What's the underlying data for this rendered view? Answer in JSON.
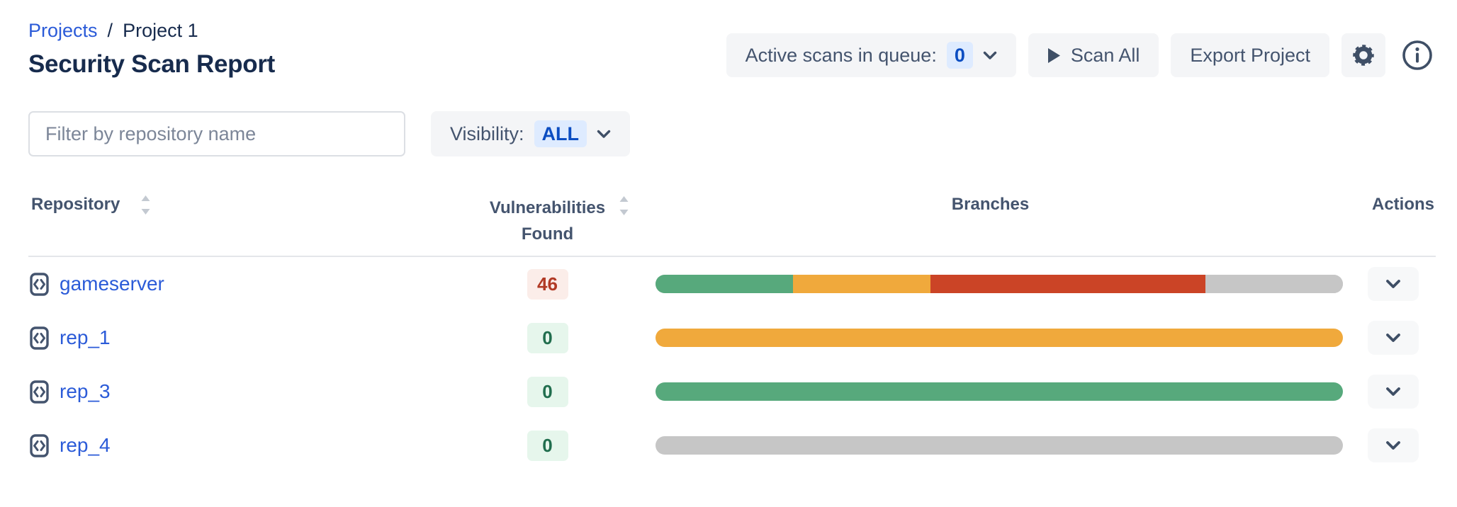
{
  "breadcrumb": {
    "projects_label": "Projects",
    "separator": "/",
    "current_label": "Project 1"
  },
  "page_title": "Security Scan Report",
  "toolbar": {
    "active_scans_label": "Active scans in queue:",
    "active_scans_count": "0",
    "scan_all_label": "Scan All",
    "export_project_label": "Export Project",
    "icons": [
      "play-icon",
      "gear-icon",
      "info-icon",
      "chevron-down-icon"
    ]
  },
  "filters": {
    "repo_filter_placeholder": "Filter by repository name",
    "visibility_label": "Visibility:",
    "visibility_value": "ALL"
  },
  "table": {
    "headers": {
      "repository": "Repository",
      "vulnerabilities": "Vulnerabilities Found",
      "branches": "Branches",
      "actions": "Actions"
    },
    "rows": [
      {
        "name": "gameserver",
        "vulnerabilities_found": "46",
        "badge": "red",
        "branch_segments": [
          {
            "color": "green",
            "pct": 20
          },
          {
            "color": "orange",
            "pct": 20
          },
          {
            "color": "red",
            "pct": 40
          },
          {
            "color": "gray",
            "pct": 20
          }
        ]
      },
      {
        "name": "rep_1",
        "vulnerabilities_found": "0",
        "badge": "green",
        "branch_segments": [
          {
            "color": "orange",
            "pct": 100
          }
        ]
      },
      {
        "name": "rep_3",
        "vulnerabilities_found": "0",
        "badge": "green",
        "branch_segments": [
          {
            "color": "green",
            "pct": 100
          }
        ]
      },
      {
        "name": "rep_4",
        "vulnerabilities_found": "0",
        "badge": "green",
        "branch_segments": [
          {
            "color": "gray",
            "pct": 100
          }
        ]
      }
    ]
  },
  "colors": {
    "green": "#57A97C",
    "orange": "#F0A93C",
    "red": "#CB4426",
    "gray": "#C6C6C6",
    "link_blue": "#2B5BD8",
    "badge_blue_bg": "#DEEBFF",
    "badge_blue_text": "#0B4DC2",
    "badge_red_bg": "#FBEDE9",
    "badge_red_text": "#B13A25",
    "badge_green_bg": "#E6F6EC",
    "badge_green_text": "#216E4E"
  }
}
